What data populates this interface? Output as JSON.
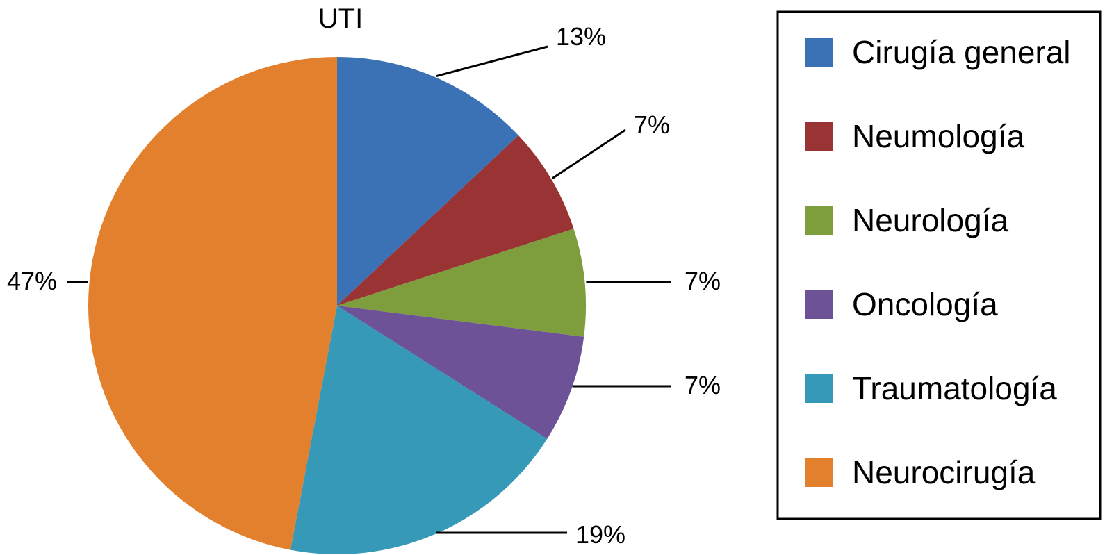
{
  "chart_data": {
    "type": "pie",
    "title": "UTI",
    "legend_position": "right",
    "slices": [
      {
        "label": "Cirugía general",
        "value": 13,
        "value_label": "13%",
        "color": "#3B72B6"
      },
      {
        "label": "Neumología",
        "value": 7,
        "value_label": "7%",
        "color": "#9A3334"
      },
      {
        "label": "Neurología",
        "value": 7,
        "value_label": "7%",
        "color": "#7E9E3E"
      },
      {
        "label": "Oncología",
        "value": 7,
        "value_label": "7%",
        "color": "#6E5297"
      },
      {
        "label": "Traumatología",
        "value": 19,
        "value_label": "19%",
        "color": "#3699B8"
      },
      {
        "label": "Neurocirugía",
        "value": 47,
        "value_label": "47%",
        "color": "#E3802D"
      }
    ]
  }
}
